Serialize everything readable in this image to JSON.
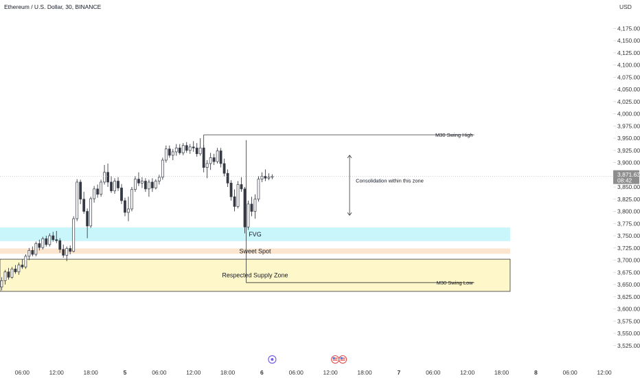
{
  "header": {
    "title": "Ethereum / U.S. Dollar, 30, BINANCE",
    "currency": "USD"
  },
  "colors": {
    "candle_up": "#ffffff",
    "candle_down": "#363a45",
    "wick": "#363a45",
    "fvg_zone": "#c9f6fb",
    "sweet_spot_zone": "#fbe5cf",
    "supply_zone": "#fdf7c9",
    "line": "#333333",
    "price_tag": "#8e8e8e",
    "event_purple": "#7b5cf0",
    "event_red": "#e04747",
    "event_blue": "#2f6bd9"
  },
  "chart_data": {
    "type": "candlestick",
    "title": "Ethereum / U.S. Dollar, 30, BINANCE",
    "y_unit": "USD",
    "ylim": [
      3512,
      4198
    ],
    "y_ticks": [
      "4,175.00",
      "4,150.00",
      "4,125.00",
      "4,100.00",
      "4,075.00",
      "4,050.00",
      "4,025.00",
      "4,000.00",
      "3,975.00",
      "3,950.00",
      "3,925.00",
      "3,900.00",
      "3,875.00",
      "3,850.00",
      "3,825.00",
      "3,800.00",
      "3,775.00",
      "3,750.00",
      "3,725.00",
      "3,700.00",
      "3,675.00",
      "3,650.00",
      "3,625.00",
      "3,600.00",
      "3,575.00",
      "3,550.00",
      "3,525.00"
    ],
    "x_range_bars": [
      -0.5,
      178
    ],
    "x_ticks": [
      {
        "label": "06:00",
        "bar": 6
      },
      {
        "label": "12:00",
        "bar": 16
      },
      {
        "label": "18:00",
        "bar": 26
      },
      {
        "label": "5",
        "bar": 36
      },
      {
        "label": "06:00",
        "bar": 46
      },
      {
        "label": "12:00",
        "bar": 56
      },
      {
        "label": "18:00",
        "bar": 66
      },
      {
        "label": "6",
        "bar": 76
      },
      {
        "label": "06:00",
        "bar": 86
      },
      {
        "label": "12:00",
        "bar": 96
      },
      {
        "label": "18:00",
        "bar": 106
      },
      {
        "label": "7",
        "bar": 116
      },
      {
        "label": "06:00",
        "bar": 126
      },
      {
        "label": "12:00",
        "bar": 136
      },
      {
        "label": "18:00",
        "bar": 146
      },
      {
        "label": "8",
        "bar": 156
      },
      {
        "label": "06:00",
        "bar": 166
      },
      {
        "label": "12:00",
        "bar": 176
      }
    ],
    "candles": [
      {
        "o": 3645,
        "h": 3665,
        "l": 3638,
        "c": 3658
      },
      {
        "o": 3658,
        "h": 3680,
        "l": 3650,
        "c": 3676
      },
      {
        "o": 3676,
        "h": 3684,
        "l": 3660,
        "c": 3665
      },
      {
        "o": 3665,
        "h": 3686,
        "l": 3662,
        "c": 3682
      },
      {
        "o": 3682,
        "h": 3690,
        "l": 3672,
        "c": 3676
      },
      {
        "o": 3676,
        "h": 3695,
        "l": 3670,
        "c": 3690
      },
      {
        "o": 3690,
        "h": 3702,
        "l": 3682,
        "c": 3686
      },
      {
        "o": 3686,
        "h": 3712,
        "l": 3682,
        "c": 3708
      },
      {
        "o": 3708,
        "h": 3725,
        "l": 3700,
        "c": 3720
      },
      {
        "o": 3720,
        "h": 3728,
        "l": 3708,
        "c": 3712
      },
      {
        "o": 3712,
        "h": 3738,
        "l": 3708,
        "c": 3734
      },
      {
        "o": 3734,
        "h": 3742,
        "l": 3720,
        "c": 3726
      },
      {
        "o": 3726,
        "h": 3748,
        "l": 3722,
        "c": 3744
      },
      {
        "o": 3744,
        "h": 3750,
        "l": 3728,
        "c": 3732
      },
      {
        "o": 3732,
        "h": 3755,
        "l": 3728,
        "c": 3750
      },
      {
        "o": 3750,
        "h": 3758,
        "l": 3738,
        "c": 3742
      },
      {
        "o": 3742,
        "h": 3760,
        "l": 3735,
        "c": 3740
      },
      {
        "o": 3740,
        "h": 3745,
        "l": 3715,
        "c": 3722
      },
      {
        "o": 3722,
        "h": 3732,
        "l": 3705,
        "c": 3710
      },
      {
        "o": 3710,
        "h": 3728,
        "l": 3698,
        "c": 3724
      },
      {
        "o": 3724,
        "h": 3730,
        "l": 3712,
        "c": 3718
      },
      {
        "o": 3718,
        "h": 3790,
        "l": 3716,
        "c": 3785
      },
      {
        "o": 3785,
        "h": 3866,
        "l": 3780,
        "c": 3860
      },
      {
        "o": 3860,
        "h": 3865,
        "l": 3815,
        "c": 3825
      },
      {
        "o": 3825,
        "h": 3840,
        "l": 3795,
        "c": 3800
      },
      {
        "o": 3800,
        "h": 3806,
        "l": 3745,
        "c": 3770
      },
      {
        "o": 3770,
        "h": 3830,
        "l": 3766,
        "c": 3826
      },
      {
        "o": 3826,
        "h": 3852,
        "l": 3818,
        "c": 3846
      },
      {
        "o": 3846,
        "h": 3855,
        "l": 3828,
        "c": 3835
      },
      {
        "o": 3835,
        "h": 3865,
        "l": 3830,
        "c": 3860
      },
      {
        "o": 3860,
        "h": 3895,
        "l": 3855,
        "c": 3880
      },
      {
        "o": 3880,
        "h": 3898,
        "l": 3850,
        "c": 3860
      },
      {
        "o": 3860,
        "h": 3872,
        "l": 3838,
        "c": 3842
      },
      {
        "o": 3842,
        "h": 3868,
        "l": 3836,
        "c": 3862
      },
      {
        "o": 3862,
        "h": 3870,
        "l": 3842,
        "c": 3848
      },
      {
        "o": 3848,
        "h": 3856,
        "l": 3815,
        "c": 3822
      },
      {
        "o": 3822,
        "h": 3828,
        "l": 3790,
        "c": 3798
      },
      {
        "o": 3798,
        "h": 3830,
        "l": 3780,
        "c": 3805
      },
      {
        "o": 3805,
        "h": 3850,
        "l": 3800,
        "c": 3845
      },
      {
        "o": 3845,
        "h": 3872,
        "l": 3840,
        "c": 3866
      },
      {
        "o": 3866,
        "h": 3880,
        "l": 3852,
        "c": 3858
      },
      {
        "o": 3858,
        "h": 3870,
        "l": 3848,
        "c": 3862
      },
      {
        "o": 3862,
        "h": 3868,
        "l": 3840,
        "c": 3846
      },
      {
        "o": 3846,
        "h": 3865,
        "l": 3830,
        "c": 3860
      },
      {
        "o": 3860,
        "h": 3868,
        "l": 3840,
        "c": 3848
      },
      {
        "o": 3848,
        "h": 3866,
        "l": 3845,
        "c": 3862
      },
      {
        "o": 3862,
        "h": 3875,
        "l": 3855,
        "c": 3870
      },
      {
        "o": 3870,
        "h": 3910,
        "l": 3865,
        "c": 3905
      },
      {
        "o": 3905,
        "h": 3935,
        "l": 3900,
        "c": 3928
      },
      {
        "o": 3928,
        "h": 3935,
        "l": 3910,
        "c": 3915
      },
      {
        "o": 3915,
        "h": 3928,
        "l": 3905,
        "c": 3922
      },
      {
        "o": 3922,
        "h": 3938,
        "l": 3914,
        "c": 3930
      },
      {
        "o": 3930,
        "h": 3938,
        "l": 3916,
        "c": 3920
      },
      {
        "o": 3920,
        "h": 3940,
        "l": 3915,
        "c": 3935
      },
      {
        "o": 3935,
        "h": 3942,
        "l": 3920,
        "c": 3925
      },
      {
        "o": 3925,
        "h": 3938,
        "l": 3918,
        "c": 3932
      },
      {
        "o": 3932,
        "h": 3944,
        "l": 3922,
        "c": 3930
      },
      {
        "o": 3930,
        "h": 3940,
        "l": 3912,
        "c": 3918
      },
      {
        "o": 3918,
        "h": 3950,
        "l": 3914,
        "c": 3930
      },
      {
        "o": 3930,
        "h": 3936,
        "l": 3880,
        "c": 3890
      },
      {
        "o": 3890,
        "h": 3905,
        "l": 3868,
        "c": 3898
      },
      {
        "o": 3898,
        "h": 3920,
        "l": 3885,
        "c": 3910
      },
      {
        "o": 3910,
        "h": 3918,
        "l": 3895,
        "c": 3902
      },
      {
        "o": 3902,
        "h": 3930,
        "l": 3898,
        "c": 3924
      },
      {
        "o": 3924,
        "h": 3930,
        "l": 3890,
        "c": 3898
      },
      {
        "o": 3898,
        "h": 3908,
        "l": 3872,
        "c": 3878
      },
      {
        "o": 3878,
        "h": 3886,
        "l": 3850,
        "c": 3858
      },
      {
        "o": 3858,
        "h": 3864,
        "l": 3822,
        "c": 3830
      },
      {
        "o": 3830,
        "h": 3845,
        "l": 3800,
        "c": 3810
      },
      {
        "o": 3810,
        "h": 3862,
        "l": 3806,
        "c": 3855
      },
      {
        "o": 3855,
        "h": 3870,
        "l": 3840,
        "c": 3846
      },
      {
        "o": 3846,
        "h": 3850,
        "l": 3755,
        "c": 3768
      },
      {
        "o": 3768,
        "h": 3822,
        "l": 3762,
        "c": 3815
      },
      {
        "o": 3815,
        "h": 3830,
        "l": 3790,
        "c": 3800
      },
      {
        "o": 3800,
        "h": 3835,
        "l": 3785,
        "c": 3825
      },
      {
        "o": 3825,
        "h": 3872,
        "l": 3820,
        "c": 3866
      },
      {
        "o": 3866,
        "h": 3880,
        "l": 3860,
        "c": 3872
      },
      {
        "o": 3872,
        "h": 3886,
        "l": 3862,
        "c": 3868
      },
      {
        "o": 3868,
        "h": 3878,
        "l": 3864,
        "c": 3870
      },
      {
        "o": 3870,
        "h": 3876,
        "l": 3866,
        "c": 3871.63
      }
    ],
    "last_price": {
      "label": "3,871.63",
      "countdown": "08:42",
      "value": 3871.63
    }
  },
  "annotations": {
    "swing_high_label": "M30 Swing High",
    "swing_low_label": "M30 Swing Low",
    "consolidation_label": "Consolidation within this zone",
    "fvg_label": "FVG",
    "sweet_spot_label": "Sweet Spot",
    "supply_zone_label": "Respected Supply Zone",
    "swing_high_price": 3957,
    "swing_low_price": 3654,
    "fvg_range": [
      3739,
      3767
    ],
    "sweet_spot_range": [
      3713,
      3724
    ],
    "supply_range": [
      3636,
      3702
    ],
    "consolidation_range": [
      3792,
      3915
    ]
  },
  "events": [
    {
      "name": "event-purple",
      "glyph": "✦"
    },
    {
      "name": "event-us-flag",
      "glyph": "🇺🇸"
    }
  ]
}
